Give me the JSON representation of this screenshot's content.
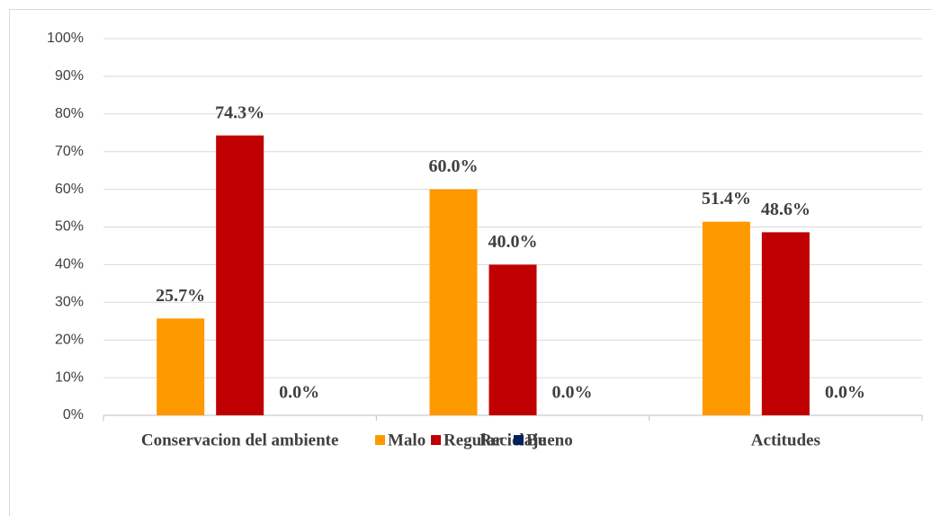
{
  "chart_data": {
    "type": "bar",
    "categories": [
      "Conservacion del ambiente",
      "Reciclaje",
      "Actitudes"
    ],
    "series": [
      {
        "name": "Malo",
        "color": "#ff9900",
        "values": [
          25.7,
          60.0,
          51.4
        ],
        "value_labels": [
          "25.7%",
          "60.0%",
          "51.4%"
        ]
      },
      {
        "name": "Regular",
        "color": "#c00000",
        "values": [
          74.3,
          40.0,
          48.6
        ],
        "value_labels": [
          "74.3%",
          "40.0%",
          "48.6%"
        ]
      },
      {
        "name": "Bueno",
        "color": "#002060",
        "values": [
          0.0,
          0.0,
          0.0
        ],
        "value_labels": [
          "0.0%",
          "0.0%",
          "0.0%"
        ]
      }
    ],
    "ylim": [
      0,
      100
    ],
    "yticks": [
      {
        "value": 0,
        "label": "0%"
      },
      {
        "value": 10,
        "label": "10%"
      },
      {
        "value": 20,
        "label": "20%"
      },
      {
        "value": 30,
        "label": "30%"
      },
      {
        "value": 40,
        "label": "40%"
      },
      {
        "value": 50,
        "label": "50%"
      },
      {
        "value": 60,
        "label": "60%"
      },
      {
        "value": 70,
        "label": "70%"
      },
      {
        "value": 80,
        "label": "80%"
      },
      {
        "value": 90,
        "label": "90%"
      },
      {
        "value": 100,
        "label": "100%"
      }
    ],
    "grid": true,
    "legend": "bottom"
  }
}
